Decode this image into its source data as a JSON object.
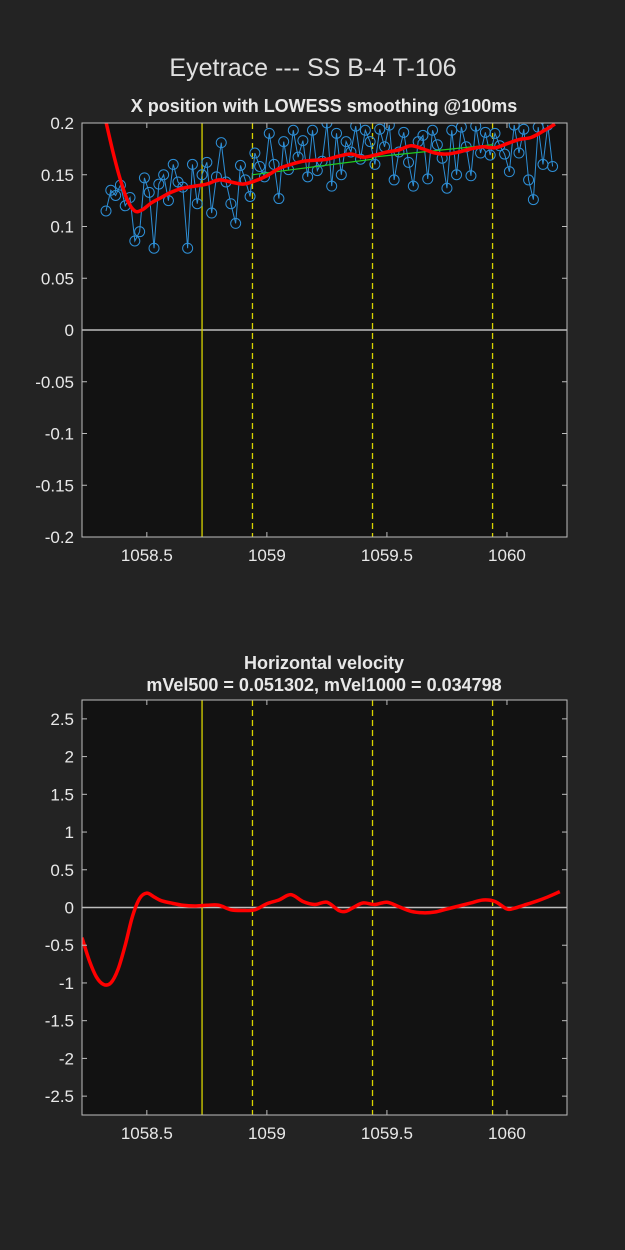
{
  "figure": {
    "title": "Eyetrace --- SS B-4 T-106",
    "colors": {
      "background": "#232323",
      "axes": "#121212",
      "frame": "#bdbdbd",
      "raw": "#2e8fd6",
      "smooth": "#ff0000",
      "fit": "#22cc22",
      "zero": "#bdbdbd",
      "event": "#d8d400"
    }
  },
  "chart_data": [
    {
      "type": "line",
      "title": "X position with LOWESS smoothing @100ms",
      "xlabel": "",
      "ylabel": "",
      "xlim": [
        1058.23,
        1060.25
      ],
      "ylim": [
        -0.2,
        0.2
      ],
      "xticks": [
        "1058.5",
        "1059",
        "1059.5",
        "1060"
      ],
      "yticks": [
        "0.2",
        "0.15",
        "0.1",
        "0.05",
        "0",
        "-0.05",
        "-0.1",
        "-0.15",
        "-0.2"
      ],
      "grid": false,
      "zero_line": 0,
      "event_lines": [
        {
          "x": 1058.73,
          "style": "solid"
        },
        {
          "x": 1058.94,
          "style": "dashed"
        },
        {
          "x": 1059.44,
          "style": "dashed"
        },
        {
          "x": 1059.94,
          "style": "dashed"
        }
      ],
      "series": [
        {
          "style": "raw-markers",
          "x": [
            1058.33,
            1058.35,
            1058.37,
            1058.39,
            1058.41,
            1058.43,
            1058.45,
            1058.47,
            1058.49,
            1058.51,
            1058.53,
            1058.55,
            1058.57,
            1058.59,
            1058.61,
            1058.63,
            1058.65,
            1058.67,
            1058.69,
            1058.71,
            1058.73,
            1058.75,
            1058.77,
            1058.79,
            1058.81,
            1058.83,
            1058.85,
            1058.87,
            1058.89,
            1058.91,
            1058.93,
            1058.95,
            1058.97,
            1058.99,
            1059.01,
            1059.03,
            1059.05,
            1059.07,
            1059.09,
            1059.11,
            1059.13,
            1059.15,
            1059.17,
            1059.19,
            1059.21,
            1059.23,
            1059.25,
            1059.27,
            1059.29,
            1059.31,
            1059.33,
            1059.35,
            1059.37,
            1059.39,
            1059.41,
            1059.43,
            1059.45,
            1059.47,
            1059.49,
            1059.51,
            1059.53,
            1059.55,
            1059.57,
            1059.59,
            1059.61,
            1059.63,
            1059.65,
            1059.67,
            1059.69,
            1059.71,
            1059.73,
            1059.75,
            1059.77,
            1059.79,
            1059.81,
            1059.83,
            1059.85,
            1059.87,
            1059.89,
            1059.91,
            1059.93,
            1059.95,
            1059.97,
            1059.99,
            1060.01,
            1060.03,
            1060.05,
            1060.07,
            1060.09,
            1060.11,
            1060.13,
            1060.15,
            1060.17,
            1060.19
          ],
          "y": [
            0.115,
            0.135,
            0.13,
            0.14,
            0.12,
            0.128,
            0.086,
            0.095,
            0.147,
            0.133,
            0.079,
            0.141,
            0.15,
            0.125,
            0.16,
            0.143,
            0.138,
            0.079,
            0.16,
            0.122,
            0.15,
            0.162,
            0.113,
            0.148,
            0.181,
            0.143,
            0.122,
            0.103,
            0.159,
            0.145,
            0.129,
            0.171,
            0.158,
            0.148,
            0.19,
            0.16,
            0.127,
            0.182,
            0.155,
            0.193,
            0.167,
            0.183,
            0.148,
            0.193,
            0.154,
            0.163,
            0.2,
            0.139,
            0.19,
            0.15,
            0.182,
            0.172,
            0.197,
            0.165,
            0.193,
            0.182,
            0.16,
            0.194,
            0.177,
            0.198,
            0.145,
            0.172,
            0.191,
            0.162,
            0.139,
            0.182,
            0.188,
            0.146,
            0.193,
            0.179,
            0.166,
            0.137,
            0.193,
            0.15,
            0.196,
            0.177,
            0.149,
            0.197,
            0.171,
            0.191,
            0.169,
            0.19,
            0.178,
            0.17,
            0.153,
            0.198,
            0.171,
            0.194,
            0.145,
            0.126,
            0.196,
            0.16,
            0.198,
            0.158
          ]
        },
        {
          "style": "fit-segments",
          "segments": [
            {
              "x": [
                1058.94,
                1059.44
              ],
              "y": [
                0.15,
                0.165
              ]
            },
            {
              "x": [
                1059.44,
                1059.94
              ],
              "y": [
                0.167,
                0.179
              ]
            }
          ]
        },
        {
          "style": "smooth-thick",
          "x": [
            1058.33,
            1058.36,
            1058.39,
            1058.42,
            1058.45,
            1058.48,
            1058.52,
            1058.56,
            1058.6,
            1058.65,
            1058.7,
            1058.75,
            1058.8,
            1058.85,
            1058.9,
            1058.95,
            1059.0,
            1059.05,
            1059.1,
            1059.15,
            1059.2,
            1059.25,
            1059.3,
            1059.35,
            1059.4,
            1059.45,
            1059.5,
            1059.55,
            1059.6,
            1059.65,
            1059.7,
            1059.75,
            1059.8,
            1059.85,
            1059.9,
            1059.95,
            1060.0,
            1060.05,
            1060.1,
            1060.15,
            1060.2
          ],
          "y": [
            0.201,
            0.171,
            0.145,
            0.125,
            0.115,
            0.116,
            0.123,
            0.128,
            0.133,
            0.137,
            0.139,
            0.141,
            0.145,
            0.143,
            0.141,
            0.144,
            0.149,
            0.156,
            0.16,
            0.163,
            0.164,
            0.165,
            0.168,
            0.17,
            0.167,
            0.169,
            0.172,
            0.174,
            0.178,
            0.175,
            0.171,
            0.17,
            0.172,
            0.175,
            0.177,
            0.176,
            0.18,
            0.184,
            0.186,
            0.192,
            0.199
          ]
        }
      ]
    },
    {
      "type": "line",
      "title": "Horizontal velocity",
      "subtitle": "mVel500 = 0.051302, mVel1000 = 0.034798",
      "xlabel": "",
      "ylabel": "",
      "xlim": [
        1058.23,
        1060.25
      ],
      "ylim": [
        -2.75,
        2.75
      ],
      "xticks": [
        "1058.5",
        "1059",
        "1059.5",
        "1060"
      ],
      "yticks": [
        "2.5",
        "2",
        "1.5",
        "1",
        "0.5",
        "0",
        "-0.5",
        "-1",
        "-1.5",
        "-2",
        "-2.5"
      ],
      "grid": false,
      "zero_line": 0,
      "event_lines": [
        {
          "x": 1058.73,
          "style": "solid"
        },
        {
          "x": 1058.94,
          "style": "dashed"
        },
        {
          "x": 1059.44,
          "style": "dashed"
        },
        {
          "x": 1059.94,
          "style": "dashed"
        }
      ],
      "series": [
        {
          "style": "smooth-thick",
          "x": [
            1058.23,
            1058.26,
            1058.29,
            1058.32,
            1058.35,
            1058.38,
            1058.41,
            1058.44,
            1058.47,
            1058.5,
            1058.53,
            1058.56,
            1058.6,
            1058.65,
            1058.7,
            1058.75,
            1058.8,
            1058.85,
            1058.9,
            1058.95,
            1059.0,
            1059.05,
            1059.1,
            1059.15,
            1059.2,
            1059.25,
            1059.3,
            1059.33,
            1059.36,
            1059.4,
            1059.45,
            1059.5,
            1059.55,
            1059.6,
            1059.65,
            1059.7,
            1059.75,
            1059.8,
            1059.85,
            1059.9,
            1059.95,
            1060.0,
            1060.03,
            1060.07,
            1060.12,
            1060.17,
            1060.22
          ],
          "y": [
            -0.4,
            -0.7,
            -0.92,
            -1.02,
            -1.0,
            -0.82,
            -0.5,
            -0.12,
            0.12,
            0.19,
            0.14,
            0.09,
            0.06,
            0.03,
            0.02,
            0.03,
            0.03,
            -0.03,
            -0.04,
            -0.03,
            0.05,
            0.1,
            0.17,
            0.08,
            0.04,
            0.07,
            -0.04,
            -0.05,
            0.0,
            0.06,
            0.04,
            0.07,
            0.01,
            -0.05,
            -0.07,
            -0.06,
            -0.02,
            0.02,
            0.06,
            0.1,
            0.08,
            -0.02,
            -0.01,
            0.03,
            0.08,
            0.14,
            0.21
          ]
        }
      ]
    }
  ]
}
